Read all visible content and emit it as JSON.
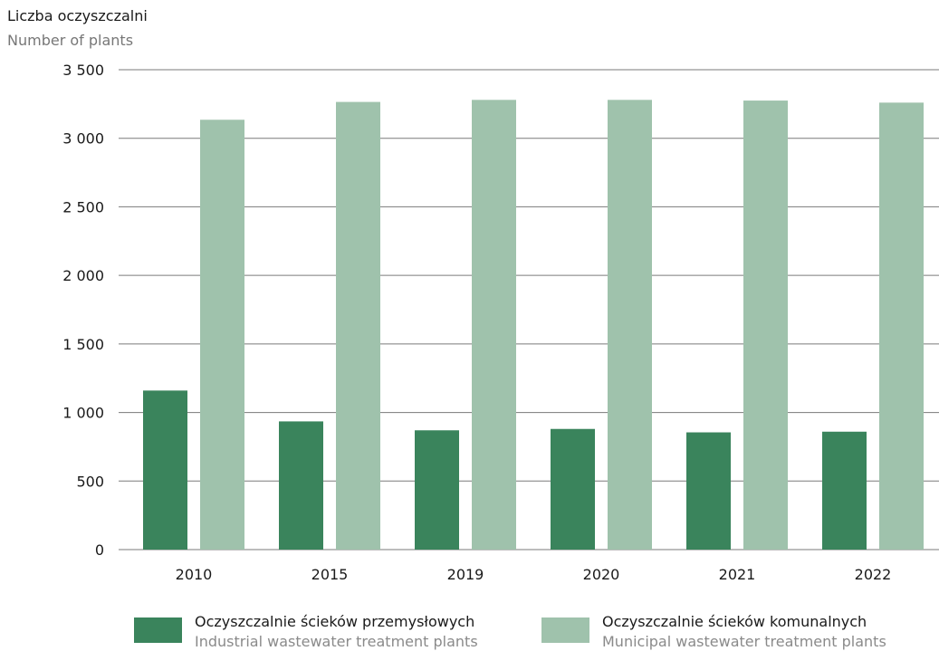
{
  "chart_data": {
    "type": "bar",
    "title": "Liczba oczyszczalni",
    "subtitle": "Number of plants",
    "categories": [
      "2010",
      "2015",
      "2019",
      "2020",
      "2021",
      "2022"
    ],
    "ylim": [
      0,
      3500
    ],
    "yticks": [
      0,
      500,
      1000,
      1500,
      2000,
      2500,
      3000,
      3500
    ],
    "ytick_labels": [
      "0",
      "500",
      "1 000",
      "1 500",
      "2 000",
      "2 500",
      "3 000",
      "3 500"
    ],
    "grid": true,
    "legend_position": "bottom",
    "series": [
      {
        "name": "Oczyszczalnie ścieków przemysłowych",
        "name_en": "Industrial wastewater treatment plants",
        "color": "#3a845c",
        "values": [
          1160,
          935,
          870,
          880,
          855,
          860
        ]
      },
      {
        "name": "Oczyszczalnie ścieków komunalnych",
        "name_en": "Municipal wastewater treatment plants",
        "color": "#9fc2ac",
        "values": [
          3135,
          3265,
          3280,
          3280,
          3275,
          3260
        ]
      }
    ]
  }
}
